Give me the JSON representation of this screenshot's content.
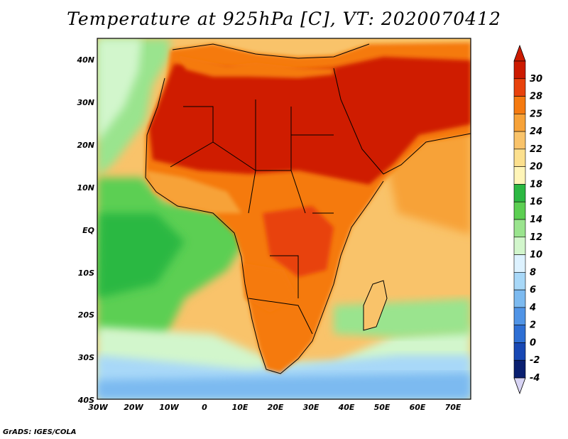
{
  "title": "Temperature at 925hPa [C], VT: 2020070412",
  "credit": "GrADS: IGES/COLA",
  "map": {
    "lat_ticks": [
      "40N",
      "30N",
      "20N",
      "10N",
      "EQ",
      "10S",
      "20S",
      "30S",
      "40S"
    ],
    "lon_ticks": [
      "30W",
      "20W",
      "10W",
      "0",
      "10E",
      "20E",
      "30E",
      "40E",
      "50E",
      "60E",
      "70E"
    ],
    "lat_range": [
      -40,
      45
    ],
    "lon_range": [
      -30,
      75
    ]
  },
  "colorbar": {
    "levels": [
      "30",
      "28",
      "25",
      "24",
      "22",
      "20",
      "18",
      "16",
      "14",
      "12",
      "10",
      "8",
      "6",
      "4",
      "2",
      "0",
      "-2",
      "-4"
    ],
    "colors": [
      "#cc1a00",
      "#e8420c",
      "#f57a10",
      "#f7a238",
      "#f9c36a",
      "#fce08e",
      "#fff5b8",
      "#2cb842",
      "#5ccf52",
      "#9ae48e",
      "#d2f6cc",
      "#ddf2ff",
      "#a8d8f8",
      "#7cbaf0",
      "#5094e6",
      "#2e6fd4",
      "#1848b4",
      "#0a1f70"
    ]
  },
  "regions": {
    "ocean_south_cold": "#6fb0f0",
    "ocean_south_cool": "#a6d6f8",
    "ocean_south_pale": "#dff4ff",
    "ocean_tropics": "#7fd681",
    "ocean_atlantic_green": "#3cbf4f",
    "ocean_warm": "#f9c36a",
    "land_hot": "#cf1f02",
    "land_warm": "#e8420c",
    "land_mild": "#f57a10"
  }
}
